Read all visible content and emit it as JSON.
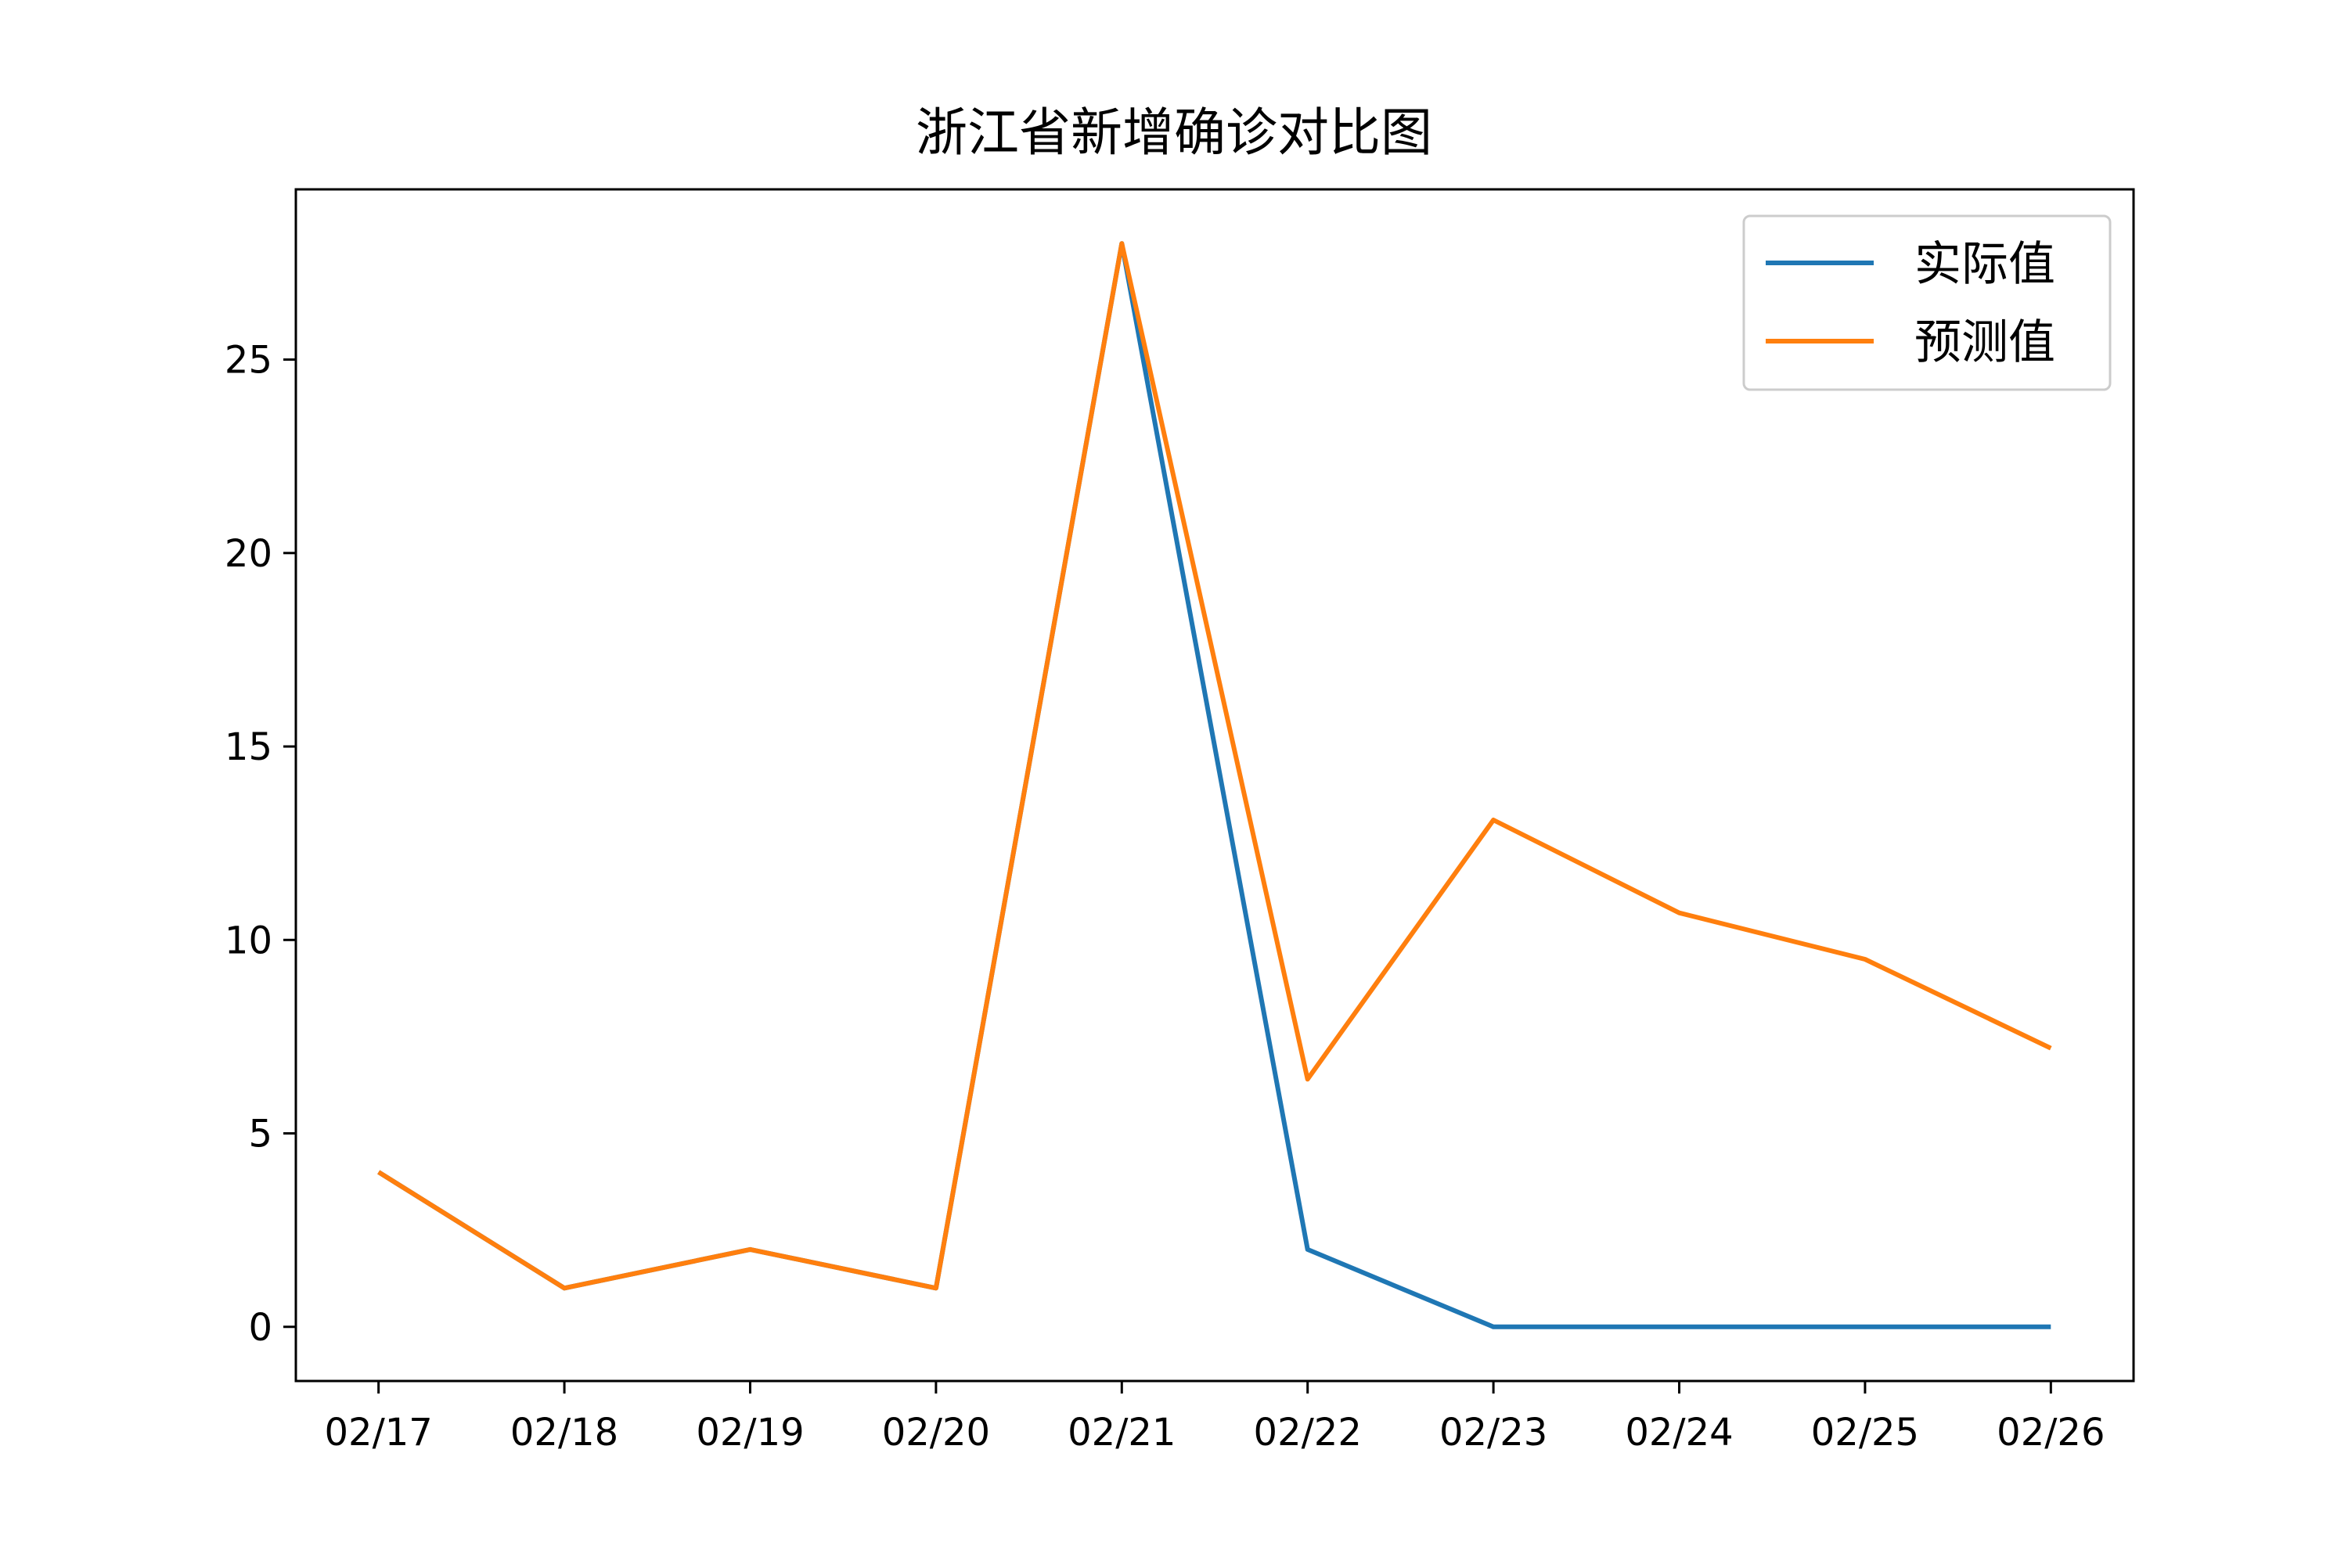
{
  "chart_data": {
    "type": "line",
    "title": "浙江省新增确诊对比图",
    "xlabel": "",
    "ylabel": "",
    "categories": [
      "02/17",
      "02/18",
      "02/19",
      "02/20",
      "02/21",
      "02/22",
      "02/23",
      "02/24",
      "02/25",
      "02/26"
    ],
    "series": [
      {
        "name": "实际值",
        "color": "#1f77b4",
        "values": [
          4,
          1,
          2,
          1,
          28,
          2,
          0,
          0,
          0,
          0
        ]
      },
      {
        "name": "预测值",
        "color": "#ff7f0e",
        "values": [
          4,
          1,
          2,
          1,
          28,
          6.4,
          13.1,
          10.7,
          9.5,
          7.2
        ]
      }
    ],
    "ylim": [
      -1.4,
      29.4
    ],
    "yticks": [
      0,
      5,
      10,
      15,
      20,
      25
    ],
    "grid": false,
    "legend_position": "upper right"
  }
}
